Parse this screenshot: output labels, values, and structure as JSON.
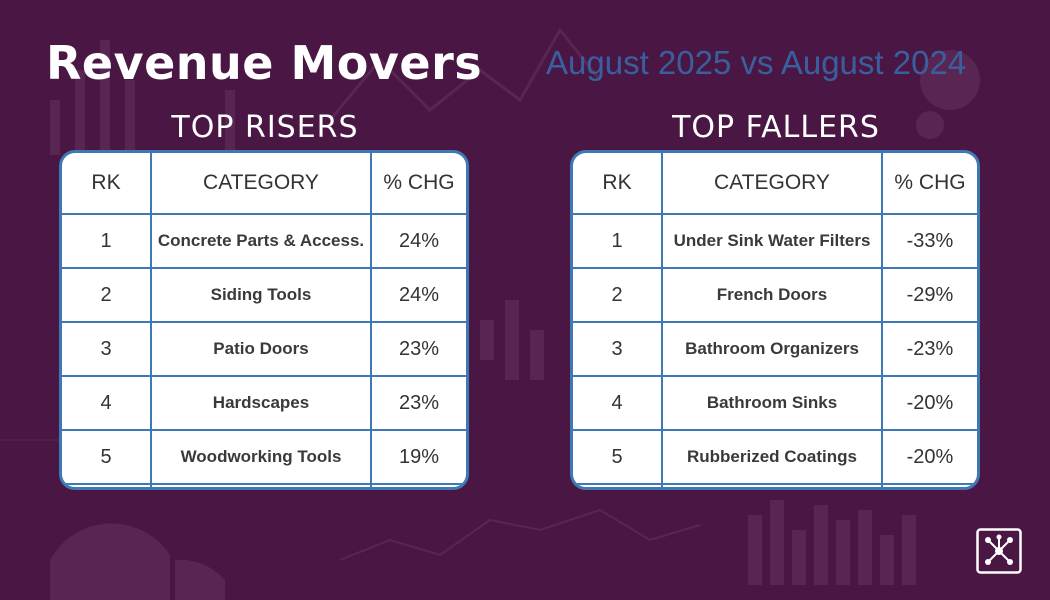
{
  "header": {
    "title": "Revenue Movers",
    "subtitle": "August 2025 vs August 2024"
  },
  "risers": {
    "heading": "TOP RISERS",
    "columns": [
      "RK",
      "CATEGORY",
      "% CHG"
    ],
    "rows": [
      {
        "rank": "1",
        "category": "Concrete Parts & Access.",
        "change": "24%"
      },
      {
        "rank": "2",
        "category": "Siding Tools",
        "change": "24%"
      },
      {
        "rank": "3",
        "category": "Patio Doors",
        "change": "23%"
      },
      {
        "rank": "4",
        "category": "Hardscapes",
        "change": "23%"
      },
      {
        "rank": "5",
        "category": "Woodworking Tools",
        "change": "19%"
      }
    ]
  },
  "fallers": {
    "heading": "TOP FALLERS",
    "columns": [
      "RK",
      "CATEGORY",
      "% CHG"
    ],
    "rows": [
      {
        "rank": "1",
        "category": "Under Sink Water Filters",
        "change": "-33%"
      },
      {
        "rank": "2",
        "category": "French Doors",
        "change": "-29%"
      },
      {
        "rank": "3",
        "category": "Bathroom Organizers",
        "change": "-23%"
      },
      {
        "rank": "4",
        "category": "Bathroom Sinks",
        "change": "-20%"
      },
      {
        "rank": "5",
        "category": "Rubberized Coatings",
        "change": "-20%"
      }
    ]
  },
  "colors": {
    "background": "#4a1745",
    "table_border": "#3e78b5",
    "subtitle": "#3a5f9e"
  },
  "icons": {
    "logo": "network-nodes-icon"
  }
}
